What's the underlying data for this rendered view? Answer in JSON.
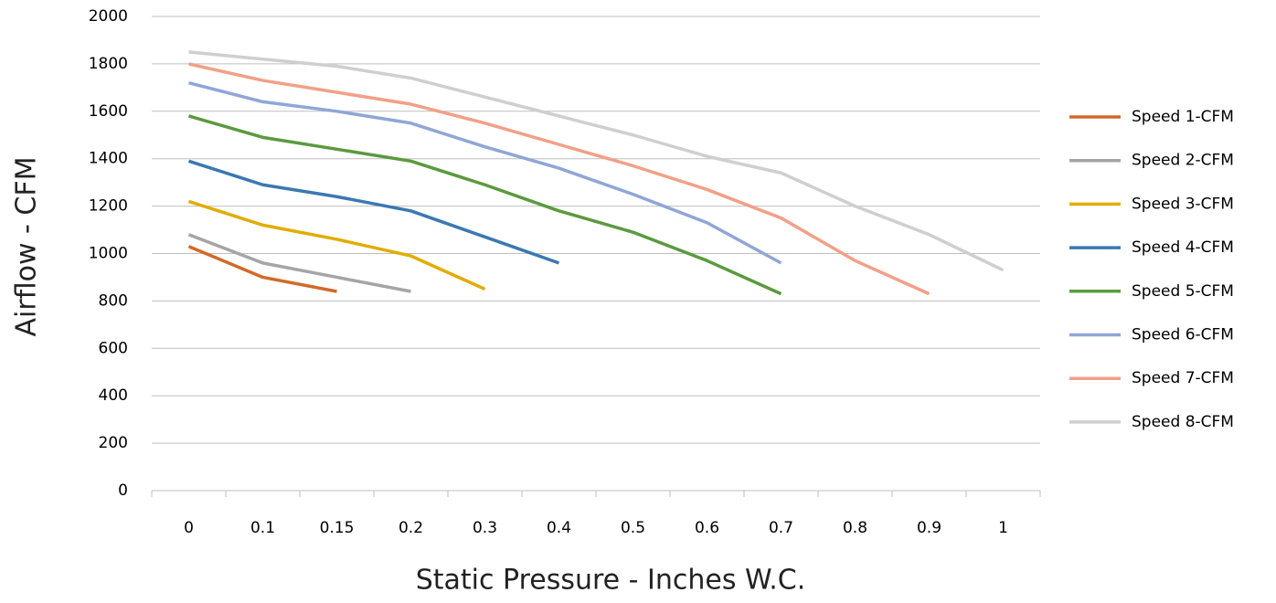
{
  "chart_data": {
    "type": "line",
    "x_label": "Static Pressure - Inches W.C.",
    "y_label": "Airflow - CFM",
    "categories": [
      "0",
      "0.1",
      "0.15",
      "0.2",
      "0.3",
      "0.4",
      "0.5",
      "0.6",
      "0.7",
      "0.8",
      "0.9",
      "1"
    ],
    "series": [
      {
        "name": "Speed 1-CFM",
        "color": "#d2692b",
        "values": [
          1030,
          900,
          840,
          null,
          null,
          null,
          null,
          null,
          null,
          null,
          null,
          null
        ]
      },
      {
        "name": "Speed 2-CFM",
        "color": "#a5a5a5",
        "values": [
          1080,
          960,
          900,
          840,
          null,
          null,
          null,
          null,
          null,
          null,
          null,
          null
        ]
      },
      {
        "name": "Speed 3-CFM",
        "color": "#e2ac00",
        "values": [
          1220,
          1120,
          1060,
          990,
          850,
          null,
          null,
          null,
          null,
          null,
          null,
          null
        ]
      },
      {
        "name": "Speed 4-CFM",
        "color": "#3b78b1",
        "values": [
          1390,
          1290,
          1240,
          1180,
          1070,
          960,
          null,
          null,
          null,
          null,
          null,
          null
        ]
      },
      {
        "name": "Speed 5-CFM",
        "color": "#5b9a3f",
        "values": [
          1580,
          1490,
          1440,
          1390,
          1290,
          1180,
          1090,
          970,
          830,
          null,
          null,
          null
        ]
      },
      {
        "name": "Speed 6-CFM",
        "color": "#8fa6d6",
        "values": [
          1720,
          1640,
          1600,
          1550,
          1450,
          1360,
          1250,
          1130,
          960,
          null,
          null,
          null
        ]
      },
      {
        "name": "Speed 7-CFM",
        "color": "#f1a088",
        "values": [
          1800,
          1730,
          1680,
          1630,
          1550,
          1460,
          1370,
          1270,
          1150,
          970,
          830,
          null
        ]
      },
      {
        "name": "Speed 8-CFM",
        "color": "#cfcfcf",
        "values": [
          1850,
          1820,
          1790,
          1740,
          1660,
          1580,
          1500,
          1410,
          1340,
          1200,
          1080,
          930
        ]
      }
    ],
    "ylim": [
      0,
      2000
    ],
    "yticks": [
      0,
      200,
      400,
      600,
      800,
      1000,
      1200,
      1400,
      1600,
      1800,
      2000
    ],
    "grid": true,
    "legend": "right"
  }
}
